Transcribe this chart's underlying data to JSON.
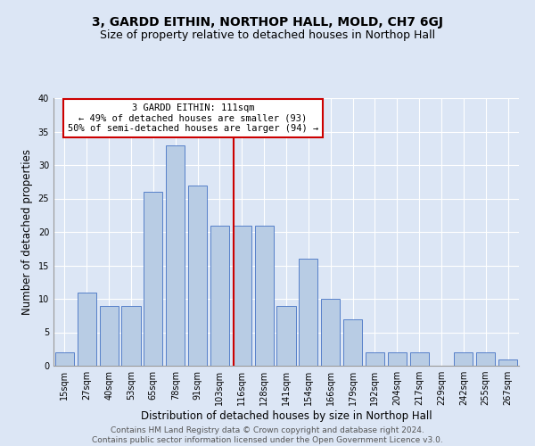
{
  "title": "3, GARDD EITHIN, NORTHOP HALL, MOLD, CH7 6GJ",
  "subtitle": "Size of property relative to detached houses in Northop Hall",
  "xlabel": "Distribution of detached houses by size in Northop Hall",
  "ylabel": "Number of detached properties",
  "categories": [
    "15sqm",
    "27sqm",
    "40sqm",
    "53sqm",
    "65sqm",
    "78sqm",
    "91sqm",
    "103sqm",
    "116sqm",
    "128sqm",
    "141sqm",
    "154sqm",
    "166sqm",
    "179sqm",
    "192sqm",
    "204sqm",
    "217sqm",
    "229sqm",
    "242sqm",
    "255sqm",
    "267sqm"
  ],
  "values": [
    2,
    11,
    9,
    9,
    26,
    33,
    27,
    21,
    21,
    21,
    9,
    16,
    10,
    7,
    2,
    2,
    2,
    0,
    2,
    2,
    1
  ],
  "bar_color": "#b8cce4",
  "bar_edge_color": "#4472c4",
  "vline_x_index": 7.62,
  "annotation_text_line1": "3 GARDD EITHIN: 111sqm",
  "annotation_text_line2": "← 49% of detached houses are smaller (93)",
  "annotation_text_line3": "50% of semi-detached houses are larger (94) →",
  "annotation_box_facecolor": "#ffffff",
  "annotation_box_edgecolor": "#cc0000",
  "vline_color": "#cc0000",
  "background_color": "#dce6f5",
  "footer_line1": "Contains HM Land Registry data © Crown copyright and database right 2024.",
  "footer_line2": "Contains public sector information licensed under the Open Government Licence v3.0.",
  "ylim": [
    0,
    40
  ],
  "yticks": [
    0,
    5,
    10,
    15,
    20,
    25,
    30,
    35,
    40
  ],
  "title_fontsize": 10,
  "subtitle_fontsize": 9,
  "xlabel_fontsize": 8.5,
  "ylabel_fontsize": 8.5,
  "tick_fontsize": 7,
  "annotation_fontsize": 7.5,
  "footer_fontsize": 6.5
}
